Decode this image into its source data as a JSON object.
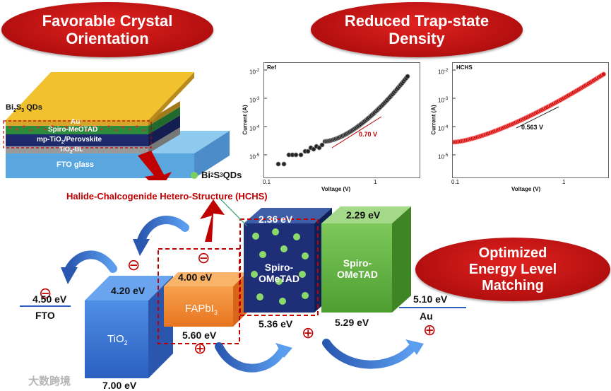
{
  "headers": {
    "left": [
      "Favorable Crystal",
      "Orientation"
    ],
    "right": [
      "Reduced Trap-state",
      "Density"
    ],
    "bottom": [
      "Optimized",
      "Energy Level",
      "Matching"
    ]
  },
  "stack": {
    "au": "Au",
    "spiro": "Spiro-MeOTAD",
    "mp": "mp-TiO",
    "mp_sub": "2",
    "mp_tail": "/Perovskite",
    "bl": "TiO",
    "bl_sub": "2",
    "bl_tail": "-BL",
    "fto": "FTO glass",
    "qd": "Bi",
    "qd_sub1": "2",
    "qd_mid": "S",
    "qd_sub2": "3",
    "qd_tail": " QDs"
  },
  "legend": {
    "qd": "Bi",
    "qd_sub1": "2",
    "qd_mid": "S",
    "qd_sub2": "3",
    "qd_tail": " QDs"
  },
  "hchs_title": "Halide-Chalcogenide Hetero-Structure (HCHS)",
  "plots": [
    {
      "label": "Ref",
      "ylabel": "Current (A)",
      "xlabel": "Voltage (V)",
      "yticks": [
        "10",
        "10",
        "10",
        "10"
      ],
      "yexp": [
        "-2",
        "-3",
        "-4",
        "-5"
      ],
      "xticks": [
        "0.1",
        "1"
      ],
      "annotation": "0.70 V",
      "marker_color": "#000000"
    },
    {
      "label": "HCHS",
      "ylabel": "Current (A)",
      "xlabel": "Voltage (V)",
      "yticks": [
        "10",
        "10",
        "10",
        "10"
      ],
      "yexp": [
        "-2",
        "-3",
        "-4",
        "-5"
      ],
      "xticks": [
        "0.1",
        "1"
      ],
      "annotation": "0.563 V",
      "marker_color": "#cc1111"
    }
  ],
  "energy": {
    "fto_level": "4.50 eV",
    "fto_label": "FTO",
    "tio2_top": "4.20 eV",
    "tio2_label": "TiO",
    "tio2_sub": "2",
    "tio2_bottom": "7.00 eV",
    "fapbi_top": "4.00 eV",
    "fapbi_label": "FAPbI",
    "fapbi_sub": "3",
    "fapbi_bottom": "5.60 eV",
    "qdspiro_top": "2.36 eV",
    "qdspiro_label": [
      "Spiro-",
      "OMeTAD"
    ],
    "qdspiro_bottom": "5.36 eV",
    "spiro_top": "2.29 eV",
    "spiro_label": [
      "Spiro-",
      "OMeTAD"
    ],
    "spiro_bottom": "5.29 eV",
    "au_level": "5.10 eV",
    "au_label": "Au"
  },
  "signs": {
    "minus": "⊖",
    "plus": "⊕"
  },
  "watermark": "大数跨境"
}
